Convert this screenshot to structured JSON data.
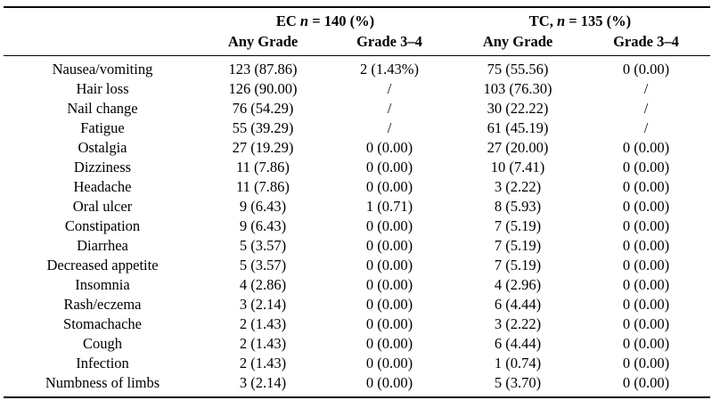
{
  "table": {
    "groups": {
      "ec": {
        "prefix": "EC ",
        "n_symbol": "n",
        "suffix": " = 140 (%)"
      },
      "tc": {
        "prefix": "TC, ",
        "n_symbol": "n",
        "suffix": " = 135 (%)"
      }
    },
    "subheaders": {
      "ec_any": "Any Grade",
      "ec_g34": "Grade 3–4",
      "tc_any": "Any Grade",
      "tc_g34": "Grade 3–4"
    },
    "rows": [
      {
        "label": "Nausea/vomiting",
        "ec_any": "123 (87.86)",
        "ec_g34": "2 (1.43%)",
        "tc_any": "75 (55.56)",
        "tc_g34": "0 (0.00)"
      },
      {
        "label": "Hair loss",
        "ec_any": "126 (90.00)",
        "ec_g34": "/",
        "tc_any": "103 (76.30)",
        "tc_g34": "/"
      },
      {
        "label": "Nail change",
        "ec_any": "76 (54.29)",
        "ec_g34": "/",
        "tc_any": "30 (22.22)",
        "tc_g34": "/"
      },
      {
        "label": "Fatigue",
        "ec_any": "55 (39.29)",
        "ec_g34": "/",
        "tc_any": "61 (45.19)",
        "tc_g34": "/"
      },
      {
        "label": "Ostalgia",
        "ec_any": "27 (19.29)",
        "ec_g34": "0 (0.00)",
        "tc_any": "27 (20.00)",
        "tc_g34": "0 (0.00)"
      },
      {
        "label": "Dizziness",
        "ec_any": "11 (7.86)",
        "ec_g34": "0 (0.00)",
        "tc_any": "10 (7.41)",
        "tc_g34": "0 (0.00)"
      },
      {
        "label": "Headache",
        "ec_any": "11 (7.86)",
        "ec_g34": "0 (0.00)",
        "tc_any": "3 (2.22)",
        "tc_g34": "0 (0.00)"
      },
      {
        "label": "Oral ulcer",
        "ec_any": "9 (6.43)",
        "ec_g34": "1 (0.71)",
        "tc_any": "8 (5.93)",
        "tc_g34": "0 (0.00)"
      },
      {
        "label": "Constipation",
        "ec_any": "9 (6.43)",
        "ec_g34": "0 (0.00)",
        "tc_any": "7 (5.19)",
        "tc_g34": "0 (0.00)"
      },
      {
        "label": "Diarrhea",
        "ec_any": "5 (3.57)",
        "ec_g34": "0 (0.00)",
        "tc_any": "7 (5.19)",
        "tc_g34": "0 (0.00)"
      },
      {
        "label": "Decreased appetite",
        "ec_any": "5 (3.57)",
        "ec_g34": "0 (0.00)",
        "tc_any": "7 (5.19)",
        "tc_g34": "0 (0.00)"
      },
      {
        "label": "Insomnia",
        "ec_any": "4 (2.86)",
        "ec_g34": "0 (0.00)",
        "tc_any": "4 (2.96)",
        "tc_g34": "0 (0.00)"
      },
      {
        "label": "Rash/eczema",
        "ec_any": "3 (2.14)",
        "ec_g34": "0 (0.00)",
        "tc_any": "6 (4.44)",
        "tc_g34": "0 (0.00)"
      },
      {
        "label": "Stomachache",
        "ec_any": "2 (1.43)",
        "ec_g34": "0 (0.00)",
        "tc_any": "3 (2.22)",
        "tc_g34": "0 (0.00)"
      },
      {
        "label": "Cough",
        "ec_any": "2 (1.43)",
        "ec_g34": "0 (0.00)",
        "tc_any": "6 (4.44)",
        "tc_g34": "0 (0.00)"
      },
      {
        "label": "Infection",
        "ec_any": "2 (1.43)",
        "ec_g34": "0 (0.00)",
        "tc_any": "1 (0.74)",
        "tc_g34": "0 (0.00)"
      },
      {
        "label": "Numbness of limbs",
        "ec_any": "3 (2.14)",
        "ec_g34": "0 (0.00)",
        "tc_any": "5 (3.70)",
        "tc_g34": "0 (0.00)"
      }
    ]
  }
}
